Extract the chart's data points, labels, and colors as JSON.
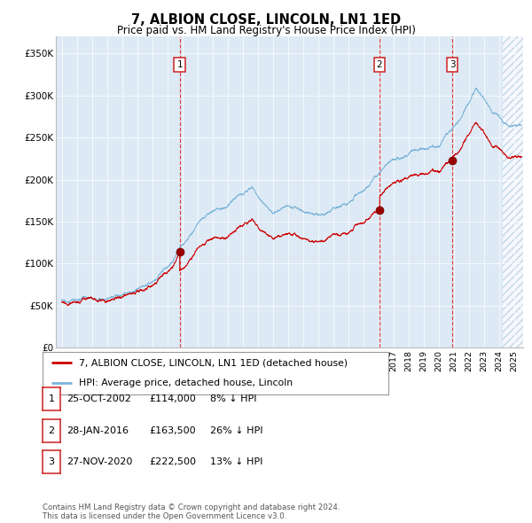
{
  "title": "7, ALBION CLOSE, LINCOLN, LN1 1ED",
  "subtitle": "Price paid vs. HM Land Registry's House Price Index (HPI)",
  "hpi_color": "#7ab4d8",
  "price_color": "#cc0000",
  "background_color": "#ddeaf5",
  "hatch_color": "#aec8de",
  "ylim": [
    0,
    370000
  ],
  "yticks": [
    0,
    50000,
    100000,
    150000,
    200000,
    250000,
    300000,
    350000
  ],
  "ytick_labels": [
    "£0",
    "£50K",
    "£100K",
    "£150K",
    "£200K",
    "£250K",
    "£300K",
    "£350K"
  ],
  "xlim_start": 1994.6,
  "xlim_end": 2025.6,
  "sale_dates": [
    2002.82,
    2016.08,
    2020.91
  ],
  "sale_prices": [
    114000,
    163500,
    222500
  ],
  "sale_labels": [
    "1",
    "2",
    "3"
  ],
  "legend_price_label": "7, ALBION CLOSE, LINCOLN, LN1 1ED (detached house)",
  "legend_hpi_label": "HPI: Average price, detached house, Lincoln",
  "table_rows": [
    [
      "1",
      "25-OCT-2002",
      "£114,000",
      "8% ↓ HPI"
    ],
    [
      "2",
      "28-JAN-2016",
      "£163,500",
      "26% ↓ HPI"
    ],
    [
      "3",
      "27-NOV-2020",
      "£222,500",
      "13% ↓ HPI"
    ]
  ],
  "footer": "Contains HM Land Registry data © Crown copyright and database right 2024.\nThis data is licensed under the Open Government Licence v3.0."
}
